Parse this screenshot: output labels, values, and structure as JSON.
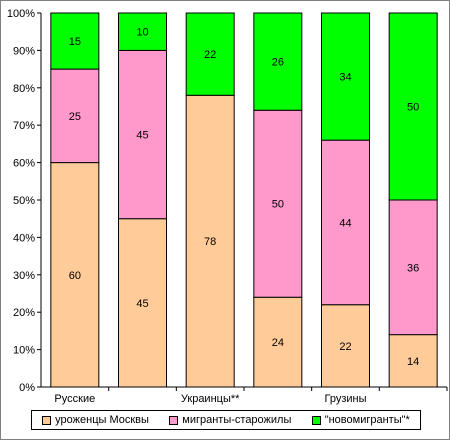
{
  "chart_data": {
    "type": "bar",
    "stacked": "percent",
    "title": "",
    "xlabel": "",
    "ylabel": "",
    "ylim": [
      0,
      100
    ],
    "y_ticks": [
      "0%",
      "10%",
      "20%",
      "30%",
      "40%",
      "50%",
      "60%",
      "70%",
      "80%",
      "90%",
      "100%"
    ],
    "categories": [
      "Русские",
      "",
      "Украинцы**",
      "",
      "Грузины",
      ""
    ],
    "series": [
      {
        "name": "уроженцы Москвы",
        "color": "#FFCC99",
        "values": [
          60,
          45,
          78,
          24,
          22,
          14
        ]
      },
      {
        "name": "мигранты-старожилы",
        "color": "#FF99CC",
        "values": [
          25,
          45,
          null,
          50,
          44,
          36
        ]
      },
      {
        "name": "\"новомигранты\"*",
        "color": "#00FF00",
        "values": [
          15,
          10,
          22,
          26,
          34,
          50
        ]
      }
    ],
    "data_labels": true,
    "grid": false,
    "legend_position": "bottom"
  }
}
